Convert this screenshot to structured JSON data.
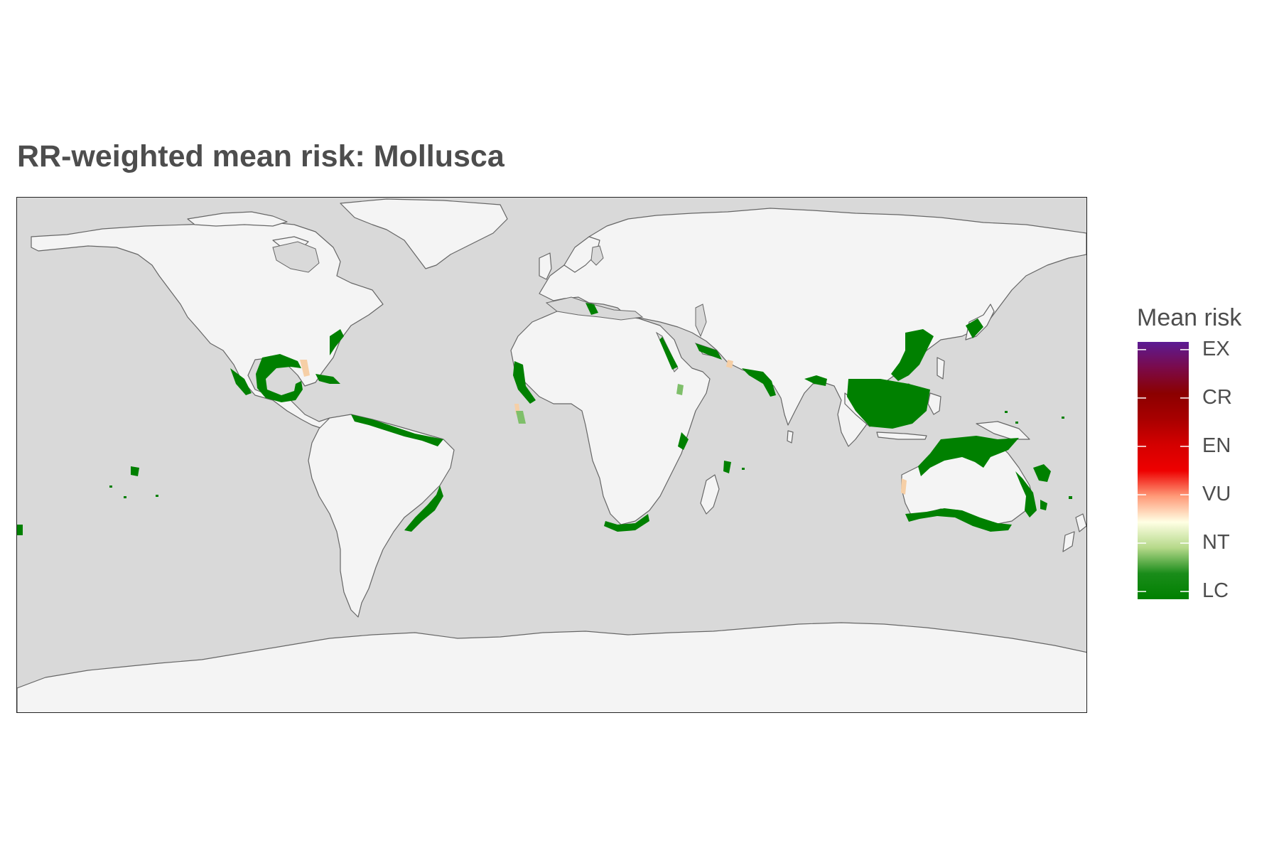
{
  "title": "RR-weighted mean risk: Mollusca",
  "legend": {
    "title": "Mean risk",
    "labels": [
      "EX",
      "CR",
      "EN",
      "VU",
      "NT",
      "LC"
    ],
    "gradient": [
      "#5b1b94",
      "#7a0a4a",
      "#8b0000",
      "#a80000",
      "#d40000",
      "#ee0000",
      "#ff9a78",
      "#ffffe4",
      "#b6d98a",
      "#1a8c1a",
      "#008000"
    ]
  },
  "colors": {
    "ocean": "#d9d9d9",
    "land": "#f4f4f4",
    "coastline": "#666666",
    "lc": "#008000",
    "nt": "#f6cfa6",
    "lc_light": "#7fbf6a"
  }
}
